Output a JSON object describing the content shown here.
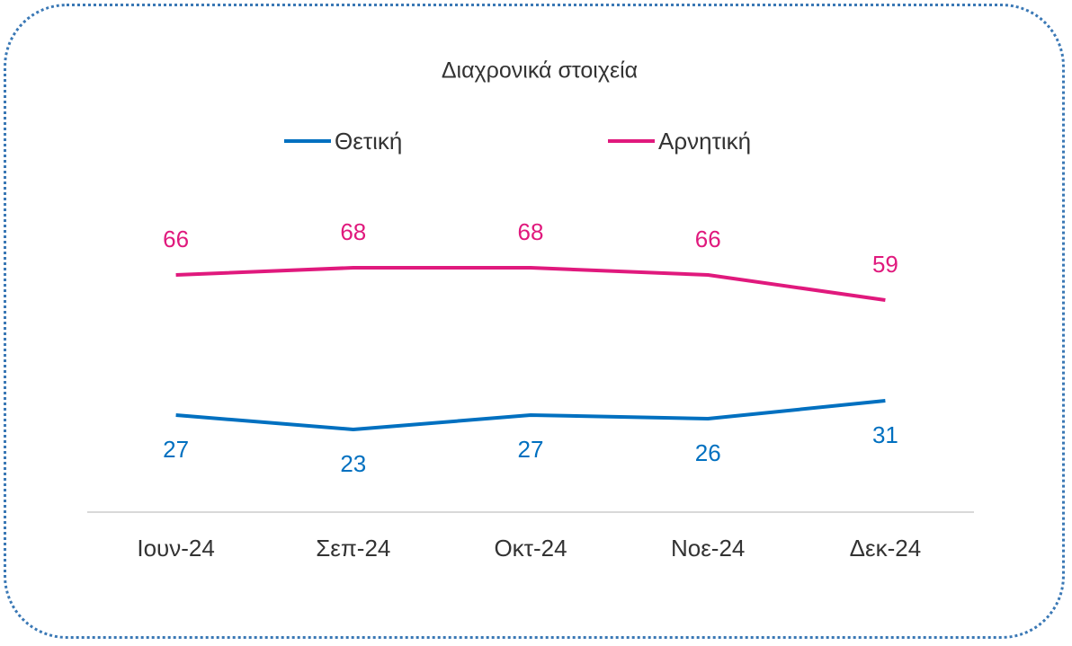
{
  "chart_data": {
    "type": "line",
    "title": "Διαχρονικά στοιχεία",
    "categories": [
      "Ιουν-24",
      "Σεπ-24",
      "Οκτ-24",
      "Νοε-24",
      "Δεκ-24"
    ],
    "series": [
      {
        "name": "Θετική",
        "color": "#0070c0",
        "values": [
          27,
          23,
          27,
          26,
          31
        ]
      },
      {
        "name": "Αρνητική",
        "color": "#e0197d",
        "values": [
          66,
          68,
          68,
          66,
          59
        ]
      }
    ],
    "ylim": [
      0,
      90
    ],
    "legend": "top"
  }
}
